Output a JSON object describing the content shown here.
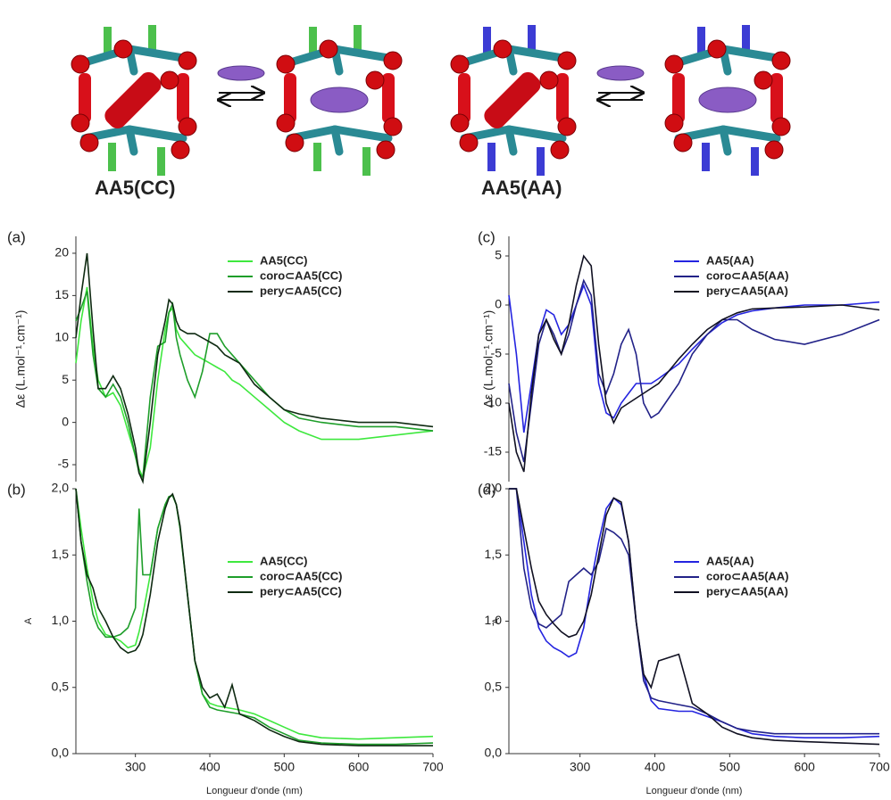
{
  "illustration": {
    "labels": [
      {
        "main": "AA5",
        "ligand": "(CC)",
        "main_color": "#e8141e",
        "ligand_color": "#2db52d"
      },
      {
        "main": "AA5",
        "ligand": "(AA)",
        "main_color": "#e8141e",
        "ligand_color": "#1a1acc"
      }
    ]
  },
  "chart_data": [
    {
      "type": "line",
      "panel_label": "(a)",
      "y_label": "Δε (L.mol⁻¹.cm⁻¹)",
      "legend": "upper right",
      "x": [
        220,
        227,
        235,
        243,
        250,
        260,
        270,
        280,
        290,
        300,
        305,
        310,
        320,
        330,
        340,
        345,
        350,
        355,
        360,
        370,
        380,
        390,
        400,
        410,
        420,
        430,
        440,
        460,
        480,
        500,
        520,
        550,
        600,
        650,
        700
      ],
      "xlim": [
        220,
        700
      ],
      "ylim": [
        -7,
        22
      ],
      "yticks": [
        -5,
        0,
        5,
        10,
        15,
        20
      ],
      "series": [
        {
          "name": "AA5(CC)",
          "color": "#3ee83e",
          "values": [
            7,
            12,
            16,
            9,
            5,
            3,
            3.5,
            2,
            -1,
            -4,
            -5.5,
            -6.5,
            -3,
            5,
            11,
            13,
            13.5,
            11,
            10,
            9,
            8,
            7.5,
            7,
            6.5,
            6,
            5,
            4.5,
            3,
            1.5,
            0,
            -1,
            -2,
            -2,
            -1.5,
            -1
          ]
        },
        {
          "name": "coro⊂AA5(CC)",
          "color": "#1e9e2a",
          "values": [
            12,
            13.5,
            15.5,
            8,
            4,
            3,
            4.5,
            3,
            0,
            -4,
            -6,
            -6.5,
            3,
            9,
            9.5,
            13,
            14,
            10,
            8,
            5,
            3,
            6,
            10.5,
            10.5,
            9,
            8,
            7,
            5,
            3,
            1.5,
            0.5,
            0,
            -0.5,
            -0.5,
            -1
          ]
        },
        {
          "name": "pery⊂AA5(CC)",
          "color": "#0f2a12",
          "values": [
            10,
            15,
            20,
            11,
            4,
            4,
            5.5,
            4,
            1,
            -3,
            -6,
            -7,
            0,
            8,
            12,
            14.5,
            14,
            12,
            11,
            10.5,
            10.5,
            10,
            9.5,
            9,
            8,
            7.5,
            7,
            4.5,
            3,
            1.5,
            1,
            0.5,
            0,
            0,
            -0.5
          ]
        }
      ]
    },
    {
      "type": "line",
      "panel_label": "(b)",
      "y_label": "A",
      "x_label": "Longueur d'onde (nm)",
      "legend": "center right",
      "x": [
        220,
        227,
        235,
        243,
        250,
        260,
        270,
        280,
        290,
        300,
        305,
        310,
        320,
        330,
        340,
        345,
        350,
        355,
        360,
        370,
        380,
        390,
        400,
        410,
        420,
        430,
        440,
        460,
        480,
        500,
        520,
        550,
        600,
        650,
        700
      ],
      "xlim": [
        220,
        700
      ],
      "ylim": [
        0,
        2
      ],
      "xticks": [
        300,
        400,
        500,
        600,
        700
      ],
      "yticks": [
        {
          "value": 0,
          "label": "0,0"
        },
        {
          "value": 0.5,
          "label": "0,5"
        },
        {
          "value": 1,
          "label": "1,0"
        },
        {
          "value": 1.5,
          "label": "1,5"
        },
        {
          "value": 2,
          "label": "2,0"
        }
      ],
      "series": [
        {
          "name": "AA5(CC)",
          "color": "#3ee83e",
          "values": [
            2,
            1.7,
            1.4,
            1.15,
            1,
            0.9,
            0.88,
            0.85,
            0.8,
            0.82,
            0.92,
            1.05,
            1.35,
            1.7,
            1.88,
            1.94,
            1.95,
            1.88,
            1.7,
            1.2,
            0.7,
            0.45,
            0.38,
            0.36,
            0.35,
            0.34,
            0.33,
            0.3,
            0.25,
            0.2,
            0.15,
            0.12,
            0.11,
            0.12,
            0.13
          ]
        },
        {
          "name": "coro⊂AA5(CC)",
          "color": "#1e9e2a",
          "values": [
            2,
            1.6,
            1.3,
            1.05,
            0.95,
            0.88,
            0.88,
            0.9,
            0.95,
            1.1,
            1.85,
            1.35,
            1.35,
            1.7,
            1.88,
            1.94,
            1.95,
            1.88,
            1.7,
            1.2,
            0.7,
            0.45,
            0.35,
            0.33,
            0.32,
            0.31,
            0.3,
            0.27,
            0.2,
            0.15,
            0.1,
            0.08,
            0.07,
            0.07,
            0.08
          ]
        },
        {
          "name": "pery⊂AA5(CC)",
          "color": "#0f2a12",
          "values": [
            2,
            1.6,
            1.35,
            1.25,
            1.1,
            1,
            0.88,
            0.8,
            0.76,
            0.78,
            0.82,
            0.9,
            1.2,
            1.6,
            1.85,
            1.93,
            1.96,
            1.88,
            1.72,
            1.2,
            0.7,
            0.5,
            0.42,
            0.45,
            0.35,
            0.52,
            0.3,
            0.25,
            0.18,
            0.13,
            0.09,
            0.07,
            0.06,
            0.06,
            0.06
          ]
        }
      ]
    },
    {
      "type": "line",
      "panel_label": "(c)",
      "y_label": "Δε (L.mol⁻¹.cm⁻¹)",
      "legend": "upper right",
      "x": [
        205,
        215,
        225,
        235,
        245,
        255,
        265,
        275,
        285,
        295,
        305,
        315,
        325,
        335,
        345,
        355,
        365,
        375,
        385,
        395,
        405,
        432,
        450,
        470,
        490,
        510,
        530,
        560,
        600,
        650,
        700
      ],
      "xlim": [
        205,
        700
      ],
      "ylim": [
        -18,
        7
      ],
      "yticks": [
        -15,
        -10,
        -5,
        0,
        5
      ],
      "series": [
        {
          "name": "AA5(AA)",
          "color": "#2424e0",
          "values": [
            1,
            -5,
            -13,
            -8,
            -3,
            -0.5,
            -1,
            -3,
            -2,
            0,
            2,
            0,
            -8,
            -11,
            -11.5,
            -10,
            -9,
            -8,
            -8,
            -8,
            -7.5,
            -6,
            -4.5,
            -3,
            -1.8,
            -1,
            -0.6,
            -0.3,
            0,
            0,
            0.3
          ]
        },
        {
          "name": "coro⊂AA5(AA)",
          "color": "#222288",
          "values": [
            -8,
            -13,
            -16,
            -10,
            -4,
            -1.5,
            -3,
            -5,
            -3,
            0,
            2.5,
            1,
            -7,
            -9,
            -7,
            -4,
            -2.5,
            -5,
            -10,
            -11.5,
            -11,
            -8,
            -5,
            -3,
            -1.5,
            -1.5,
            -2.5,
            -3.5,
            -4,
            -3,
            -1.5
          ]
        },
        {
          "name": "pery⊂AA5(AA)",
          "color": "#111122",
          "values": [
            -10,
            -15,
            -17,
            -9,
            -3,
            -1.5,
            -3.5,
            -5,
            -2,
            2,
            5,
            4,
            -4,
            -10,
            -12,
            -10.5,
            -10,
            -9.5,
            -9,
            -8.5,
            -8,
            -5.5,
            -4,
            -2.5,
            -1.5,
            -0.8,
            -0.4,
            -0.3,
            -0.2,
            0,
            -0.5
          ]
        }
      ]
    },
    {
      "type": "line",
      "panel_label": "(d)",
      "y_label": "A",
      "x_label": "Longueur d'onde (nm)",
      "legend": "center right",
      "x": [
        205,
        215,
        225,
        235,
        245,
        255,
        265,
        275,
        285,
        295,
        305,
        315,
        325,
        335,
        345,
        355,
        365,
        375,
        385,
        395,
        405,
        432,
        450,
        470,
        490,
        510,
        530,
        560,
        600,
        650,
        700
      ],
      "xlim": [
        205,
        700
      ],
      "ylim": [
        0,
        2
      ],
      "xticks": [
        300,
        400,
        500,
        600,
        700
      ],
      "yticks": [
        {
          "value": 0,
          "label": "0,0"
        },
        {
          "value": 0.5,
          "label": "0,5"
        },
        {
          "value": 1,
          "label": "1,0"
        },
        {
          "value": 1.5,
          "label": "1,5"
        },
        {
          "value": 2,
          "label": "2,0"
        }
      ],
      "series": [
        {
          "name": "AA5(AA)",
          "color": "#2424e0",
          "values": [
            2,
            2,
            1.6,
            1.2,
            0.95,
            0.85,
            0.8,
            0.77,
            0.73,
            0.76,
            0.95,
            1.3,
            1.6,
            1.85,
            1.93,
            1.88,
            1.6,
            1,
            0.6,
            0.4,
            0.34,
            0.32,
            0.32,
            0.28,
            0.24,
            0.19,
            0.15,
            0.13,
            0.12,
            0.12,
            0.13
          ]
        },
        {
          "name": "coro⊂AA5(AA)",
          "color": "#222288",
          "values": [
            2,
            2,
            1.4,
            1.1,
            0.98,
            0.95,
            1,
            1.05,
            1.3,
            1.35,
            1.4,
            1.35,
            1.45,
            1.7,
            1.67,
            1.62,
            1.5,
            1,
            0.55,
            0.42,
            0.4,
            0.37,
            0.35,
            0.3,
            0.24,
            0.19,
            0.17,
            0.15,
            0.15,
            0.15,
            0.15
          ]
        },
        {
          "name": "pery⊂AA5(AA)",
          "color": "#111122",
          "values": [
            2,
            2,
            1.7,
            1.4,
            1.15,
            1.05,
            0.98,
            0.92,
            0.88,
            0.9,
            1,
            1.2,
            1.5,
            1.8,
            1.93,
            1.9,
            1.6,
            1,
            0.6,
            0.5,
            0.7,
            0.75,
            0.38,
            0.3,
            0.2,
            0.15,
            0.12,
            0.1,
            0.09,
            0.08,
            0.07
          ]
        }
      ]
    }
  ]
}
